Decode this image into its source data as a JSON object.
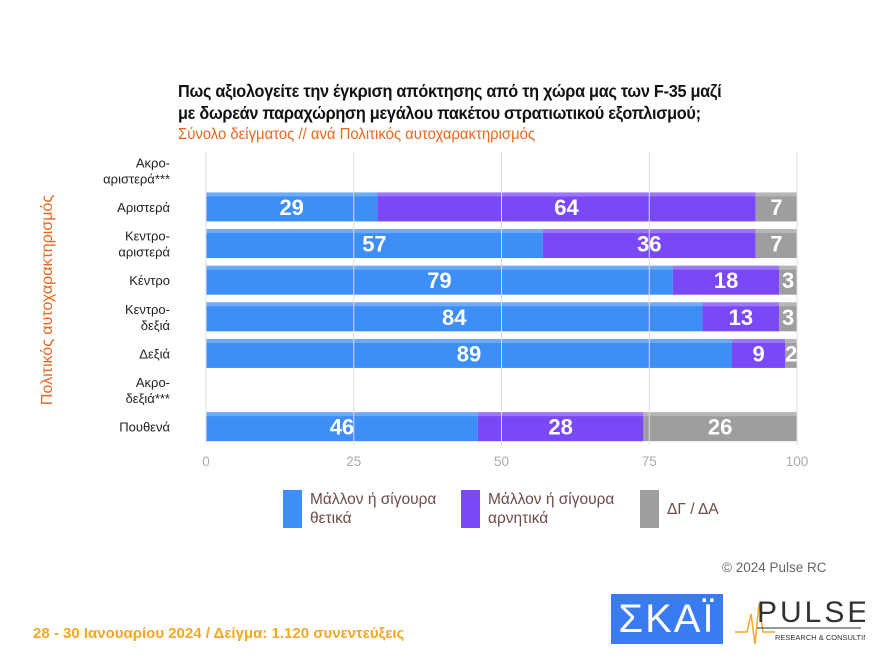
{
  "title_line1": "Πως αξιολογείτε την έγκριση απόκτησης από τη χώρα μας των F-35 μαζί",
  "title_line2": "με δωρεάν παραχώρηση μεγάλου πακέτου στρατιωτικού εξοπλισμού;",
  "subtitle": "Σύνολο δείγματος // ανά Πολιτικός αυτοχαρακτηρισμός",
  "copyright": "© 2024 Pulse RC",
  "footer": "28 - 30  Ιανουαρίου  2024  /  Δείγμα:  1.120 συνεντεύξεις",
  "logos": {
    "skai": "ΣΚΑΪ",
    "pulse": "PULSE",
    "pulse_sub": "RESEARCH & CONSULTING"
  },
  "chart_data": {
    "type": "bar",
    "orientation": "horizontal",
    "stacked": true,
    "title": "Πως αξιολογείτε την έγκριση απόκτησης από τη χώρα μας των F-35 μαζί με δωρεάν παραχώρηση μεγάλου πακέτου στρατιωτικού εξοπλισμού;",
    "ylabel": "Πολιτικός αυτοχαρακτηρισμός",
    "xlim": [
      0,
      100
    ],
    "xticks": [
      "0",
      "25",
      "50",
      "75",
      "100"
    ],
    "grid": true,
    "legend": "bottom",
    "categories": [
      [
        "Ακρο-",
        "αριστερά***"
      ],
      [
        "Αριστερά"
      ],
      [
        "Κεντρο-",
        "αριστερά"
      ],
      [
        "Κέντρο"
      ],
      [
        "Κεντρο-",
        "δεξιά"
      ],
      [
        "Δεξιά"
      ],
      [
        "Ακρο-",
        "δεξιά***"
      ],
      [
        "Πουθενά"
      ]
    ],
    "series": [
      {
        "name": "Μάλλον ή σίγουρα θετικά",
        "name_lines": [
          "Μάλλον ή σίγουρα",
          "θετικά"
        ],
        "color": "#3d8ef7",
        "values": [
          null,
          29,
          57,
          79,
          84,
          89,
          null,
          46
        ]
      },
      {
        "name": "Μάλλον ή σίγουρα αρνητικά",
        "name_lines": [
          "Μάλλον ή σίγουρα",
          "αρνητικά"
        ],
        "color": "#7a48f7",
        "values": [
          null,
          64,
          36,
          18,
          13,
          9,
          null,
          28
        ]
      },
      {
        "name": "ΔΓ / ΔΑ",
        "name_lines": [
          "ΔΓ / ΔΑ"
        ],
        "color": "#9e9e9e",
        "values": [
          null,
          7,
          7,
          3,
          3,
          2,
          null,
          26
        ]
      }
    ]
  }
}
